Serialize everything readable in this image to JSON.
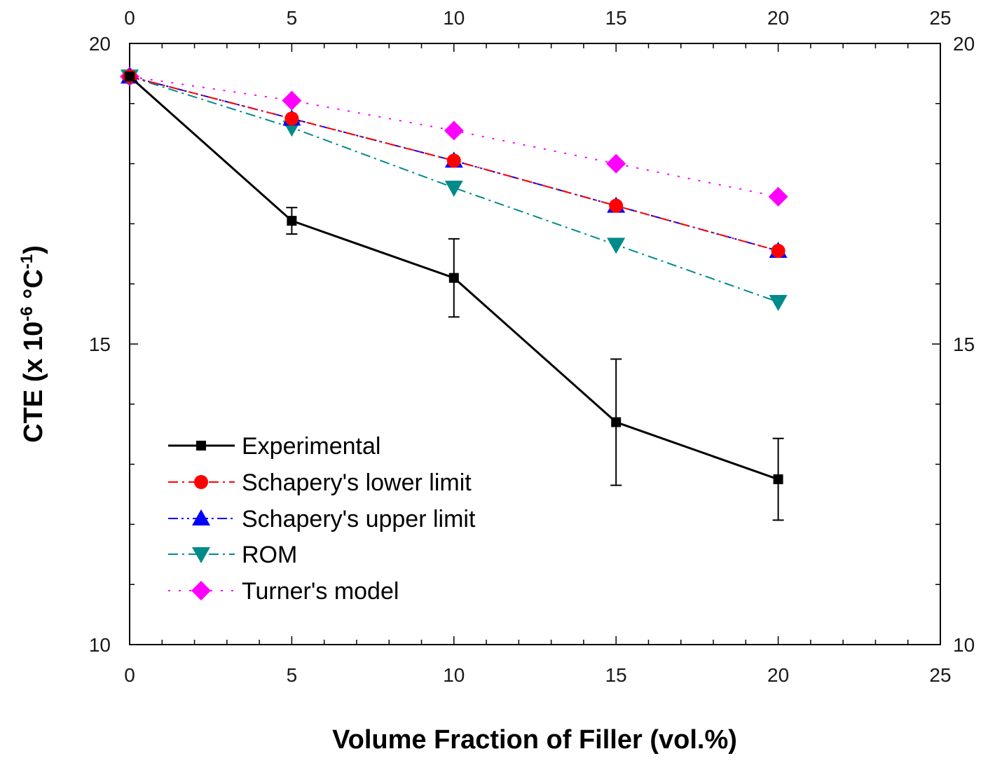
{
  "chart_data": {
    "type": "line",
    "title": "",
    "xlabel": "Volume Fraction of Filler (vol.%)",
    "ylabel_main": "CTE (x 10",
    "ylabel_sup1": "-6",
    "ylabel_mid": " °C",
    "ylabel_sup2": "-1",
    "ylabel_end": ")",
    "xlim": [
      0,
      25
    ],
    "ylim": [
      10,
      20
    ],
    "x_ticks": [
      "0",
      "5",
      "10",
      "15",
      "20",
      "25"
    ],
    "y_ticks": [
      "10",
      "15",
      "20"
    ],
    "x_tick_values": [
      0,
      5,
      10,
      15,
      20,
      25
    ],
    "y_tick_values": [
      10,
      15,
      20
    ],
    "x": [
      0,
      5,
      10,
      15,
      20
    ],
    "legend_position": "lower-left",
    "series": [
      {
        "name": "Experimental",
        "marker": "square",
        "color": "#000000",
        "dash": "solid",
        "values": [
          19.45,
          17.05,
          16.1,
          13.7,
          12.75
        ],
        "errors": [
          0,
          0.22,
          0.65,
          1.05,
          0.68
        ]
      },
      {
        "name": "Schapery's lower limit",
        "marker": "circle",
        "color": "#ff0000",
        "dash": "dashdot",
        "values": [
          19.45,
          18.75,
          18.05,
          17.3,
          16.55
        ]
      },
      {
        "name": "Schapery's upper limit",
        "marker": "triangle-up",
        "color": "#0000ff",
        "dash": "dashdotdot",
        "values": [
          19.45,
          18.75,
          18.05,
          17.3,
          16.55
        ]
      },
      {
        "name": "ROM",
        "marker": "triangle-down",
        "color": "#008b8b",
        "dash": "dashdot",
        "values": [
          19.45,
          18.6,
          17.6,
          16.65,
          15.7
        ]
      },
      {
        "name": "Turner's model",
        "marker": "diamond",
        "color": "#ff00ff",
        "dash": "dotted",
        "values": [
          19.45,
          19.05,
          18.55,
          18.0,
          17.45
        ]
      }
    ]
  }
}
